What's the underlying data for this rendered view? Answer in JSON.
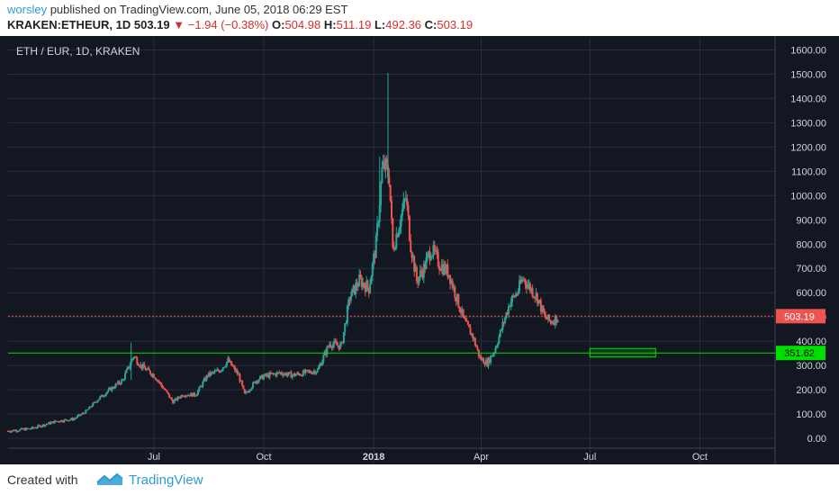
{
  "header": {
    "author": "worsley",
    "published_text": "published on TradingView.com, June 05, 2018 06:29 EST",
    "symbol": "KRAKEN:ETHEUR, 1D",
    "last": "503.19",
    "change": "−1.94 (−0.38%)",
    "open_label": "O:",
    "open": "504.98",
    "high_label": "H:",
    "high": "511.19",
    "low_label": "L:",
    "low": "492.36",
    "close_label": "C:",
    "close": "503.19"
  },
  "footer": {
    "created_with": "Created with",
    "brand": "TradingView"
  },
  "colors": {
    "background": "#131722",
    "grid": "#2a2e39",
    "up": "#26a69a",
    "down": "#ef5350",
    "price_line": "#ef5350",
    "support_line": "#00e000",
    "axis_text": "#d1d4dc"
  },
  "chart_data": {
    "type": "candlestick",
    "title": "ETH / EUR, 1D, KRAKEN",
    "ylim": [
      -100,
      1650
    ],
    "y_ticks": [
      "1600.00",
      "1500.00",
      "1400.00",
      "1300.00",
      "1200.00",
      "1100.00",
      "1000.00",
      "900.00",
      "800.00",
      "700.00",
      "600.00",
      "500.00",
      "400.00",
      "300.00",
      "200.00",
      "100.00",
      "0.00"
    ],
    "y_tick_values": [
      1600,
      1500,
      1400,
      1300,
      1200,
      1100,
      1000,
      900,
      800,
      700,
      600,
      500,
      400,
      300,
      200,
      100,
      0
    ],
    "x_ticks": [
      {
        "label": "Jul",
        "date": "2017-07-01"
      },
      {
        "label": "Oct",
        "date": "2017-10-01"
      },
      {
        "label": "2018",
        "date": "2018-01-01"
      },
      {
        "label": "Apr",
        "date": "2018-04-01"
      },
      {
        "label": "Jul",
        "date": "2018-07-01"
      },
      {
        "label": "Oct",
        "date": "2018-10-01"
      }
    ],
    "x_range": [
      "2017-03-01",
      "2018-12-03"
    ],
    "grid": true,
    "close_path": [
      [
        "2017-03-01",
        30
      ],
      [
        "2017-03-20",
        40
      ],
      [
        "2017-04-10",
        70
      ],
      [
        "2017-04-25",
        80
      ],
      [
        "2017-05-05",
        110
      ],
      [
        "2017-05-15",
        160
      ],
      [
        "2017-05-25",
        200
      ],
      [
        "2017-06-05",
        240
      ],
      [
        "2017-06-14",
        340
      ],
      [
        "2017-06-20",
        300
      ],
      [
        "2017-07-01",
        260
      ],
      [
        "2017-07-10",
        200
      ],
      [
        "2017-07-17",
        150
      ],
      [
        "2017-07-25",
        180
      ],
      [
        "2017-08-05",
        180
      ],
      [
        "2017-08-15",
        260
      ],
      [
        "2017-08-25",
        280
      ],
      [
        "2017-09-01",
        320
      ],
      [
        "2017-09-10",
        260
      ],
      [
        "2017-09-15",
        180
      ],
      [
        "2017-09-25",
        240
      ],
      [
        "2017-10-01",
        255
      ],
      [
        "2017-10-15",
        270
      ],
      [
        "2017-10-25",
        260
      ],
      [
        "2017-11-05",
        270
      ],
      [
        "2017-11-15",
        280
      ],
      [
        "2017-11-25",
        390
      ],
      [
        "2017-12-05",
        380
      ],
      [
        "2017-12-12",
        580
      ],
      [
        "2017-12-20",
        650
      ],
      [
        "2017-12-28",
        620
      ],
      [
        "2018-01-03",
        800
      ],
      [
        "2018-01-08",
        1100
      ],
      [
        "2018-01-10",
        1120
      ],
      [
        "2018-01-14",
        1080
      ],
      [
        "2018-01-17",
        780
      ],
      [
        "2018-01-22",
        880
      ],
      [
        "2018-01-28",
        990
      ],
      [
        "2018-02-01",
        800
      ],
      [
        "2018-02-06",
        650
      ],
      [
        "2018-02-12",
        700
      ],
      [
        "2018-02-18",
        780
      ],
      [
        "2018-02-25",
        720
      ],
      [
        "2018-03-05",
        680
      ],
      [
        "2018-03-12",
        570
      ],
      [
        "2018-03-18",
        480
      ],
      [
        "2018-03-25",
        420
      ],
      [
        "2018-03-31",
        330
      ],
      [
        "2018-04-06",
        310
      ],
      [
        "2018-04-12",
        360
      ],
      [
        "2018-04-18",
        450
      ],
      [
        "2018-04-25",
        560
      ],
      [
        "2018-05-01",
        600
      ],
      [
        "2018-05-06",
        660
      ],
      [
        "2018-05-12",
        620
      ],
      [
        "2018-05-18",
        580
      ],
      [
        "2018-05-24",
        500
      ],
      [
        "2018-05-29",
        480
      ],
      [
        "2018-06-05",
        503
      ]
    ],
    "price_line": 503.19,
    "price_label": "503.19",
    "support_line": 351.62,
    "support_label": "351.62",
    "box": {
      "start": "2018-07-01",
      "end": "2018-08-25",
      "low": 335,
      "high": 370
    }
  }
}
